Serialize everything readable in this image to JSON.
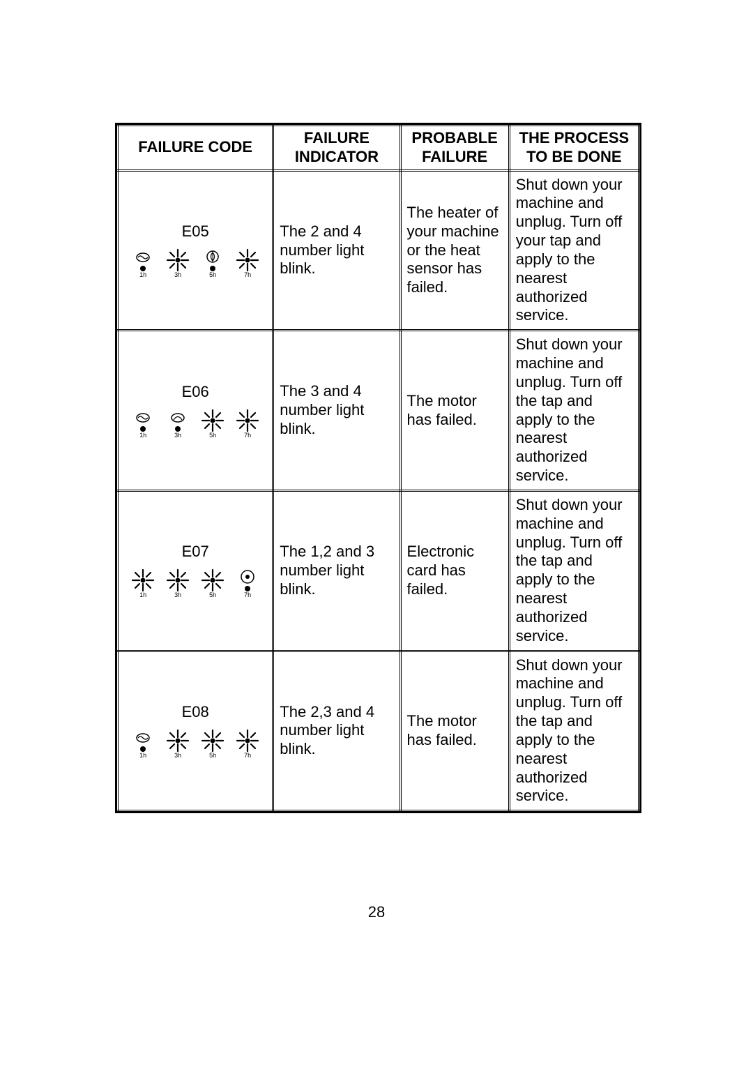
{
  "headers": {
    "code": "FAILURE CODE",
    "indicator_l1": "FAILURE",
    "indicator_l2": "INDICATOR",
    "probable_l1": "PROBABLE",
    "probable_l2": "FAILURE",
    "process_l1": "THE PROCESS",
    "process_l2": "TO BE DONE"
  },
  "hours": {
    "h1": "1h",
    "h3": "3h",
    "h5": "5h",
    "h7": "7h"
  },
  "rows": [
    {
      "code": "E05",
      "burst": [
        false,
        true,
        false,
        true
      ],
      "indicator": "The 2 and 4 number light blink.",
      "probable": "The heater of your machine or the heat sensor has failed.",
      "process": "Shut down your machine and unplug. Turn off your tap and apply to the nearest authorized service."
    },
    {
      "code": "E06",
      "burst": [
        false,
        false,
        true,
        true
      ],
      "indicator": "The 3 and 4 number light blink.",
      "probable": "The motor has failed.",
      "process": "Shut down your machine and unplug. Turn off the tap and apply to the nearest authorized service."
    },
    {
      "code": "E07",
      "burst": [
        true,
        true,
        true,
        false
      ],
      "indicator": "The 1,2 and 3 number light blink.",
      "probable": "Electronic card has failed.",
      "process": "Shut down your machine and unplug. Turn off the tap and apply to the nearest authorized service."
    },
    {
      "code": "E08",
      "burst": [
        false,
        true,
        true,
        true
      ],
      "indicator": "The 2,3 and 4 number light blink.",
      "probable": "The motor has failed.",
      "process": "Shut down your machine and unplug. Turn off the tap and apply to the nearest authorized service."
    }
  ],
  "pageNumber": "28"
}
